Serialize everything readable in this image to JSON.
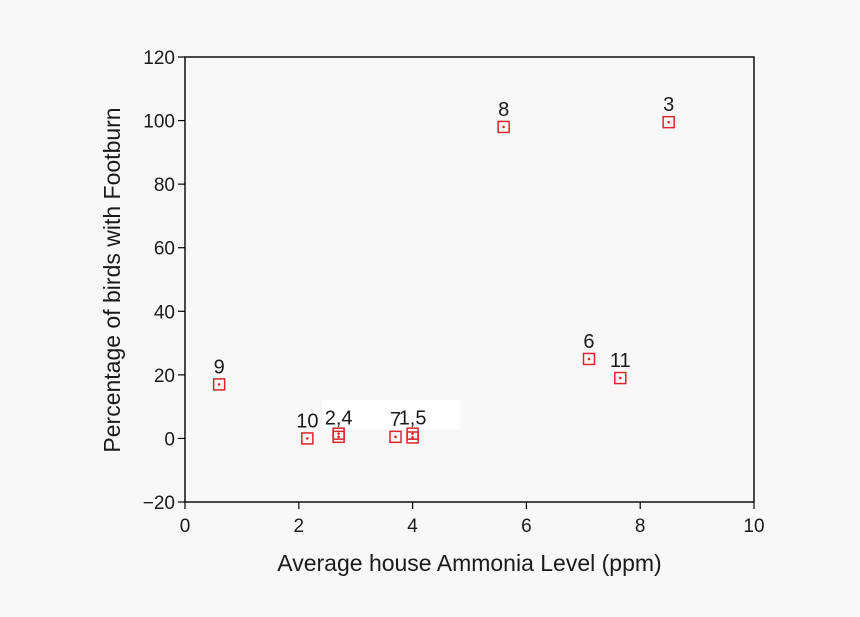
{
  "chart_data": {
    "type": "scatter",
    "title": "",
    "xlabel": "Average house Ammonia Level (ppm)",
    "ylabel": "Percentage of birds with Footburn",
    "xlim": [
      0,
      10
    ],
    "ylim": [
      -20,
      120
    ],
    "xticks": [
      0,
      2,
      4,
      6,
      8,
      10
    ],
    "xtick_labels": [
      "0",
      "2",
      "4",
      "6",
      "8",
      "10"
    ],
    "yticks": [
      -20,
      0,
      20,
      40,
      60,
      80,
      100,
      120
    ],
    "ytick_labels": [
      "−20",
      "0",
      "20",
      "40",
      "60",
      "80",
      "100",
      "120"
    ],
    "grid": false,
    "legend": "none",
    "marker": "open-square-with-center-dot",
    "marker_color": "#d9262c",
    "points": [
      {
        "label": "9",
        "x": 0.6,
        "y": 17
      },
      {
        "label": "10",
        "x": 2.15,
        "y": 0
      },
      {
        "label": "2,4",
        "x": 2.7,
        "y": 0.5
      },
      {
        "label": "2,4",
        "x": 2.7,
        "y": 1.5
      },
      {
        "label": "7",
        "x": 3.7,
        "y": 0.5
      },
      {
        "label": "1,5",
        "x": 4.0,
        "y": 0.3
      },
      {
        "label": "1,5",
        "x": 4.0,
        "y": 1.5
      },
      {
        "label": "8",
        "x": 5.6,
        "y": 98
      },
      {
        "label": "6",
        "x": 7.1,
        "y": 25
      },
      {
        "label": "11",
        "x": 7.65,
        "y": 19
      },
      {
        "label": "3",
        "x": 8.5,
        "y": 99.5
      }
    ],
    "annotations": [
      {
        "text": "9",
        "x": 0.6,
        "y": 17
      },
      {
        "text": "10",
        "x": 2.15,
        "y": 0
      },
      {
        "text": "2,4",
        "x": 2.7,
        "y": 1
      },
      {
        "text": "7",
        "x": 3.7,
        "y": 0.5
      },
      {
        "text": "1,5",
        "x": 4.0,
        "y": 1
      },
      {
        "text": "8",
        "x": 5.6,
        "y": 98
      },
      {
        "text": "6",
        "x": 7.1,
        "y": 25
      },
      {
        "text": "11",
        "x": 7.65,
        "y": 19
      },
      {
        "text": "3",
        "x": 8.5,
        "y": 99.5
      }
    ]
  }
}
